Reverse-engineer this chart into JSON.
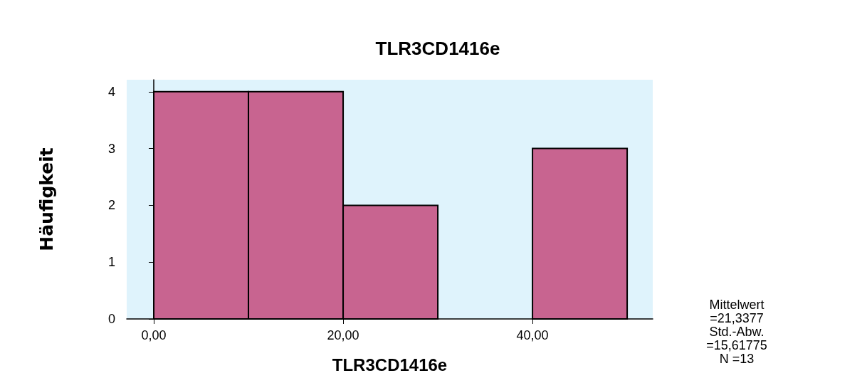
{
  "chart_data": {
    "type": "histogram",
    "title": "TLR3CD1416e",
    "xlabel": "TLR3CD1416e",
    "ylabel": "Häufigkeit",
    "bins": [
      0,
      10,
      20,
      30,
      40,
      50
    ],
    "values": [
      4,
      4,
      2,
      0,
      3
    ],
    "color": "#c86490",
    "xlim": [
      -2.86,
      52.7
    ],
    "xticks": [
      {
        "value": 0,
        "label": "0,00"
      },
      {
        "value": 20,
        "label": "20,00"
      },
      {
        "value": 40,
        "label": "40,00"
      }
    ],
    "ylim": [
      0,
      4.21
    ],
    "yticks": [
      0,
      1,
      2,
      3,
      4
    ],
    "annotations": [
      "Mittelwert\n=21,3377",
      "Std.-Abw.\n=15,61775",
      "N =13"
    ]
  }
}
